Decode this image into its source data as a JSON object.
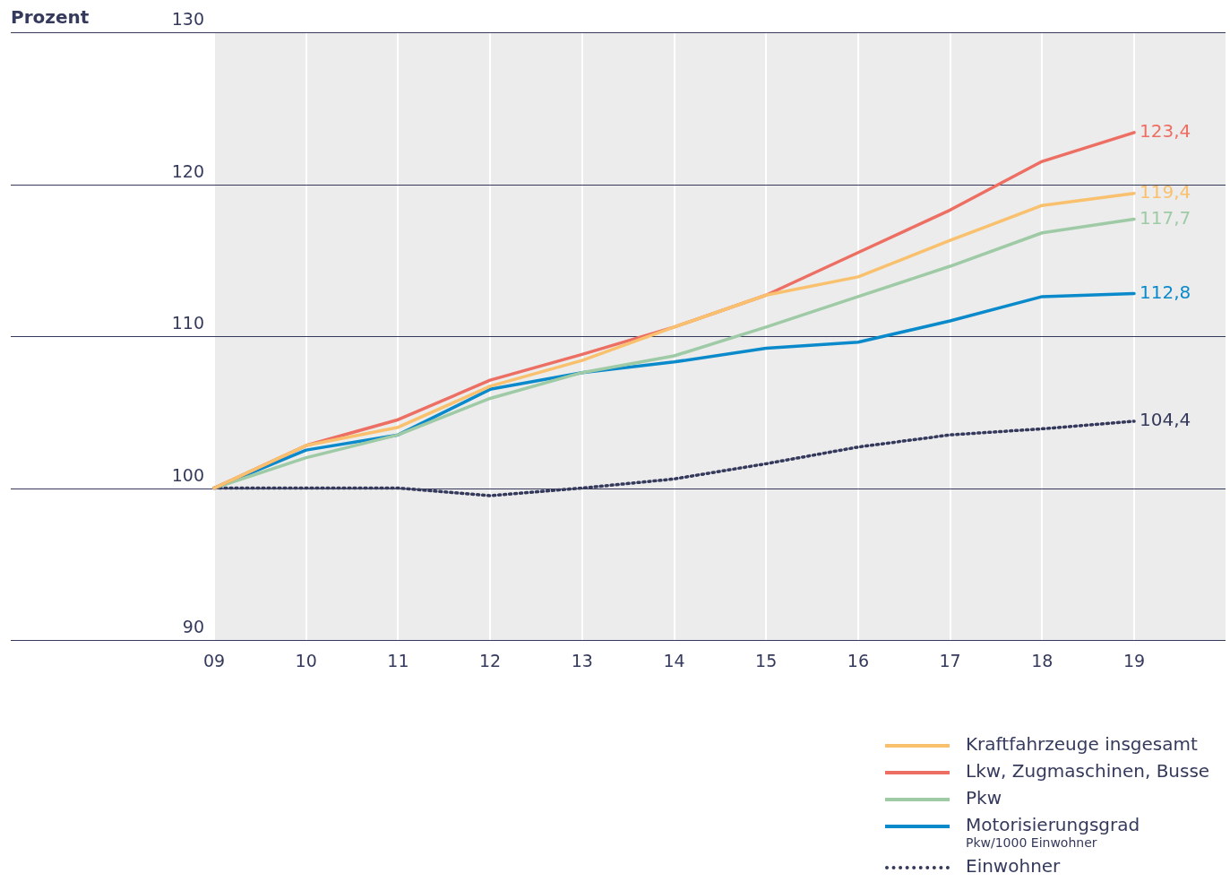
{
  "chart_data": {
    "type": "line",
    "ylabel": "Prozent",
    "categories": [
      "09",
      "10",
      "11",
      "12",
      "13",
      "14",
      "15",
      "16",
      "17",
      "18",
      "19"
    ],
    "ylim": [
      90,
      130
    ],
    "yticks": [
      90,
      100,
      110,
      120,
      130
    ],
    "grid": true,
    "legend": "bottom right",
    "line_style": "solid",
    "marker": "none",
    "series": [
      {
        "name": "Kraftfahrzeuge insgesamt",
        "color": "#f9c16e",
        "values": [
          100,
          102.8,
          104.0,
          106.7,
          108.4,
          110.6,
          112.7,
          113.9,
          116.3,
          118.6,
          119.4
        ],
        "value_labels": [
          null,
          null,
          null,
          null,
          null,
          null,
          null,
          null,
          null,
          null,
          "119,4"
        ]
      },
      {
        "name": "Lkw, Zugmaschinen, Busse",
        "color": "#ed6f63",
        "values": [
          100,
          102.8,
          104.5,
          107.1,
          108.8,
          110.6,
          112.7,
          115.5,
          118.3,
          121.5,
          123.4
        ],
        "value_labels": [
          null,
          null,
          null,
          null,
          null,
          null,
          null,
          null,
          null,
          null,
          "123,4"
        ]
      },
      {
        "name": "Pkw",
        "color": "#9fcaa6",
        "values": [
          100,
          102.0,
          103.5,
          105.9,
          107.6,
          108.7,
          110.6,
          112.6,
          114.6,
          116.8,
          117.7
        ],
        "value_labels": [
          null,
          null,
          null,
          null,
          null,
          null,
          null,
          null,
          null,
          null,
          "117,7"
        ]
      },
      {
        "name": "Motorisierungsgrad\nPkw/1000 Einwohner",
        "color": "#0a8acb",
        "values": [
          100,
          102.5,
          103.5,
          106.5,
          107.6,
          108.3,
          109.2,
          109.6,
          111.0,
          112.6,
          112.8
        ],
        "value_labels": [
          null,
          null,
          null,
          null,
          null,
          null,
          null,
          null,
          null,
          null,
          "112,8"
        ]
      },
      {
        "name": "Einwohner",
        "color": "#353a5c",
        "line_style": "dotted",
        "values": [
          100,
          100.0,
          100.0,
          99.5,
          100.0,
          100.6,
          101.6,
          102.7,
          103.5,
          103.9,
          104.4
        ],
        "value_labels": [
          null,
          null,
          null,
          null,
          null,
          null,
          null,
          null,
          null,
          null,
          "104,4"
        ]
      }
    ]
  }
}
